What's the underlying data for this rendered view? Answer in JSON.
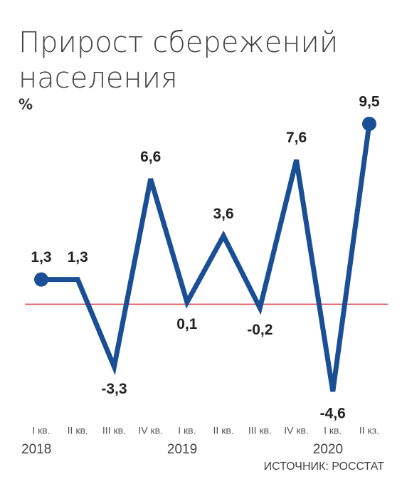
{
  "chart_data": {
    "type": "line",
    "title": [
      "Прирост сбережений",
      "населения"
    ],
    "unit": "%",
    "categories": [
      "I кв.",
      "II кв.",
      "III кв.",
      "IV кв.",
      "I кв.",
      "II кв.",
      "III кв.",
      "IV кв.",
      "I кв.",
      "II кз."
    ],
    "years": [
      {
        "index": 0,
        "label": "2018"
      },
      {
        "index": 4,
        "label": "2019"
      },
      {
        "index": 8,
        "label": "2020"
      }
    ],
    "values": [
      1.3,
      1.3,
      -3.3,
      6.6,
      0.1,
      3.6,
      -0.2,
      7.6,
      -4.6,
      9.5
    ],
    "value_labels": [
      "1,3",
      "1,3",
      "-3,3",
      "6,6",
      "0,1",
      "3,6",
      "-0,2",
      "7,6",
      "-4,6",
      "9,5"
    ],
    "color": "#1b4f95",
    "reference_line": {
      "value": 0,
      "color": "#d9434c"
    },
    "source": "ИСТОЧНИК: РОССТАТ"
  }
}
